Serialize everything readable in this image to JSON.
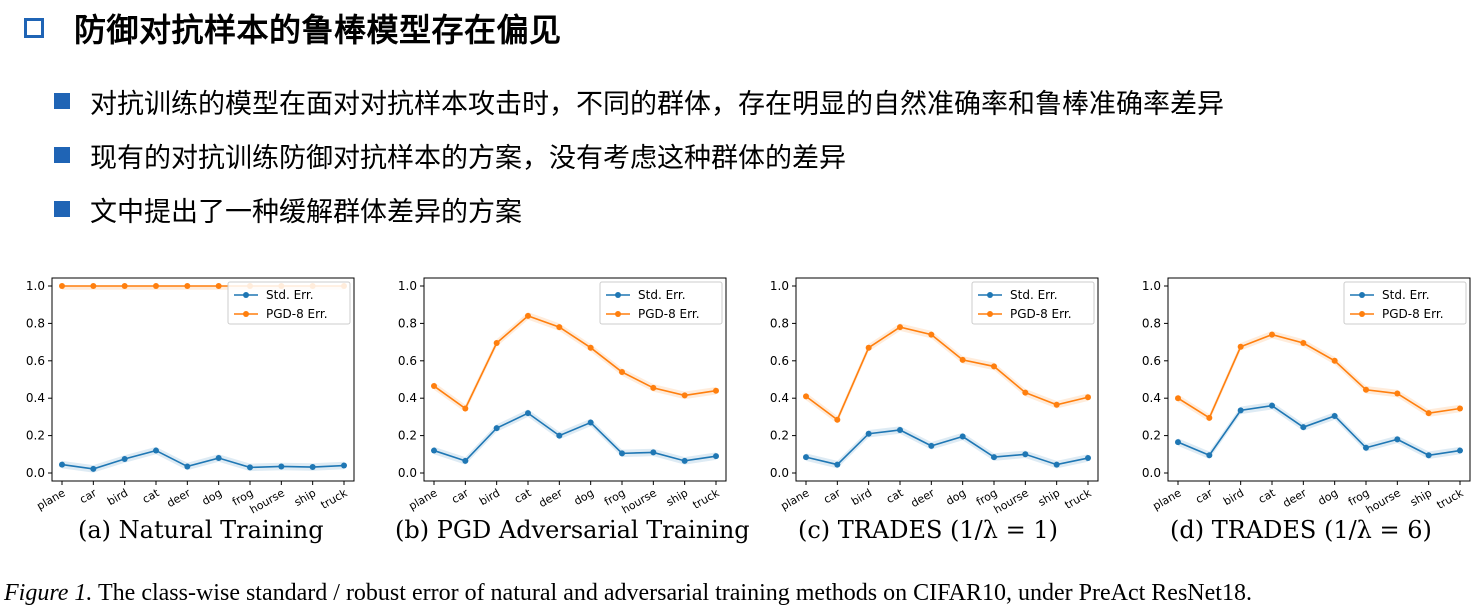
{
  "heading": "防御对抗样本的鲁棒模型存在偏见",
  "bullets": [
    "对抗训练的模型在面对对抗样本攻击时，不同的群体，存在明显的自然准确率和鲁棒准确率差异",
    "现有的对抗训练防御对抗样本的方案，没有考虑这种群体的差异",
    "文中提出了一种缓解群体差异的方案"
  ],
  "colors": {
    "accent": "#1f64b5",
    "std": "#1f77b4",
    "pgd": "#ff7f0e"
  },
  "figure_caption": {
    "label": "Figure 1.",
    "text": "The class-wise standard / robust error of natural and adversarial training methods on CIFAR10, under PreAct ResNet18."
  },
  "chart_data": [
    {
      "type": "line",
      "subcaption": "(a) Natural Training",
      "categories": [
        "plane",
        "car",
        "bird",
        "cat",
        "deer",
        "dog",
        "frog",
        "hourse",
        "ship",
        "truck"
      ],
      "ylim": [
        0,
        1.0
      ],
      "yticks": [
        "0.0",
        "0.2",
        "0.4",
        "0.6",
        "0.8",
        "1.0"
      ],
      "legend_position": "top-right",
      "series": [
        {
          "name": "Std. Err.",
          "values": [
            0.045,
            0.022,
            0.075,
            0.12,
            0.035,
            0.08,
            0.03,
            0.035,
            0.032,
            0.04
          ]
        },
        {
          "name": "PGD-8 Err.",
          "values": [
            1.0,
            1.0,
            1.0,
            1.0,
            1.0,
            1.0,
            1.0,
            1.0,
            1.0,
            1.0
          ]
        }
      ]
    },
    {
      "type": "line",
      "subcaption": "(b) PGD Adversarial Training",
      "categories": [
        "plane",
        "car",
        "bird",
        "cat",
        "deer",
        "dog",
        "frog",
        "hourse",
        "ship",
        "truck"
      ],
      "ylim": [
        0,
        1.0
      ],
      "yticks": [
        "0.0",
        "0.2",
        "0.4",
        "0.6",
        "0.8",
        "1.0"
      ],
      "legend_position": "top-right",
      "series": [
        {
          "name": "Std. Err.",
          "values": [
            0.12,
            0.065,
            0.24,
            0.32,
            0.2,
            0.27,
            0.105,
            0.11,
            0.065,
            0.09
          ]
        },
        {
          "name": "PGD-8 Err.",
          "values": [
            0.465,
            0.345,
            0.695,
            0.84,
            0.78,
            0.67,
            0.54,
            0.455,
            0.415,
            0.44
          ]
        }
      ]
    },
    {
      "type": "line",
      "subcaption": "(c) TRADES (1/λ = 1)",
      "categories": [
        "plane",
        "car",
        "bird",
        "cat",
        "deer",
        "dog",
        "frog",
        "hourse",
        "ship",
        "truck"
      ],
      "ylim": [
        0,
        1.0
      ],
      "yticks": [
        "0.0",
        "0.2",
        "0.4",
        "0.6",
        "0.8",
        "1.0"
      ],
      "legend_position": "top-right",
      "series": [
        {
          "name": "Std. Err.",
          "values": [
            0.085,
            0.045,
            0.21,
            0.23,
            0.145,
            0.195,
            0.085,
            0.1,
            0.045,
            0.08
          ]
        },
        {
          "name": "PGD-8 Err.",
          "values": [
            0.41,
            0.285,
            0.67,
            0.78,
            0.74,
            0.605,
            0.57,
            0.43,
            0.365,
            0.405
          ]
        }
      ]
    },
    {
      "type": "line",
      "subcaption": "(d) TRADES (1/λ = 6)",
      "categories": [
        "plane",
        "car",
        "bird",
        "cat",
        "deer",
        "dog",
        "frog",
        "hourse",
        "ship",
        "truck"
      ],
      "ylim": [
        0,
        1.0
      ],
      "yticks": [
        "0.0",
        "0.2",
        "0.4",
        "0.6",
        "0.8",
        "1.0"
      ],
      "legend_position": "top-right",
      "series": [
        {
          "name": "Std. Err.",
          "values": [
            0.165,
            0.095,
            0.335,
            0.36,
            0.245,
            0.305,
            0.135,
            0.18,
            0.095,
            0.12
          ]
        },
        {
          "name": "PGD-8 Err.",
          "values": [
            0.4,
            0.295,
            0.675,
            0.74,
            0.695,
            0.6,
            0.445,
            0.425,
            0.32,
            0.345
          ]
        }
      ]
    }
  ]
}
